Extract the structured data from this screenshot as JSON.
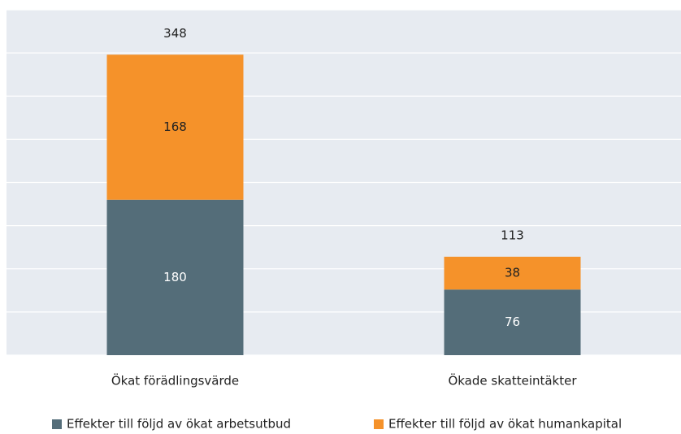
{
  "chart_data": {
    "type": "stacked_bar",
    "categories": [
      "Ökat förädlingsvärde",
      "Ökade skatteintäkter"
    ],
    "series": [
      {
        "name": "Effekter till följd av ökat arbetsutbud",
        "color": "#546d79",
        "values": [
          180,
          76
        ]
      },
      {
        "name": "Effekter till följd av ökat humankapital",
        "color": "#f5922a",
        "values": [
          168,
          38
        ]
      }
    ],
    "totals": [
      348,
      113
    ],
    "ylim": [
      0,
      400
    ],
    "yticks": [
      0,
      50,
      100,
      150,
      200,
      250,
      300,
      350,
      400
    ],
    "grid": true,
    "legend": "bottom"
  }
}
